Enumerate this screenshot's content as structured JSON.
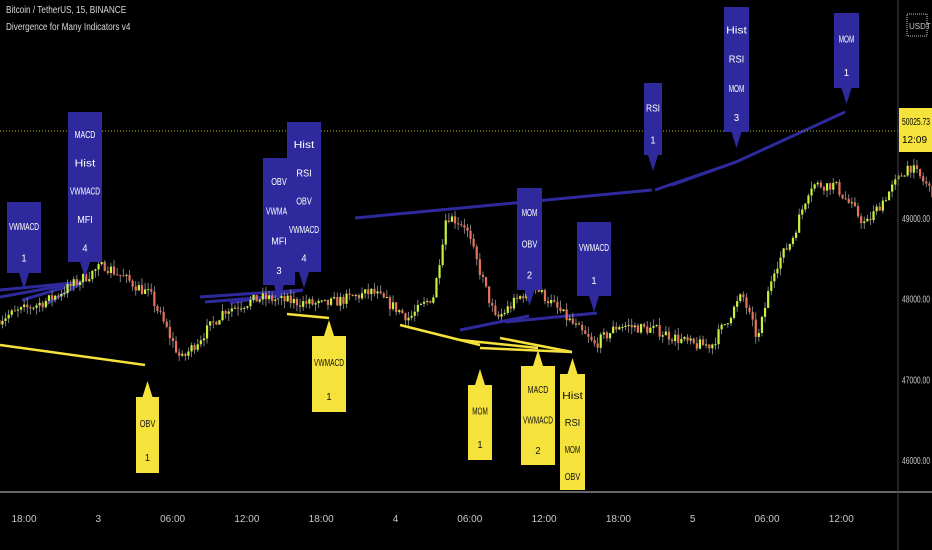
{
  "header": {
    "symbol_line": "Bitcoin / TetherUS, 15, BINANCE",
    "indicator_line": "Divergence for Many Indicators v4",
    "currency_button": "USDT"
  },
  "colors": {
    "background": "#000000",
    "bull_candle": "#c6f23a",
    "bear_candle": "#e8735a",
    "bearish_divergence": "#2e2a9e",
    "bullish_divergence": "#f5e33b",
    "price_line": "#c8b400"
  },
  "chart_data": {
    "type": "candlestick",
    "title": "Bitcoin / TetherUS, 15, BINANCE",
    "ylim": [
      45800,
      51000
    ],
    "y_ticks": [
      "49000.00",
      "48000.00",
      "47000.00",
      "46000.00"
    ],
    "x_ticks": [
      "18:00",
      "3",
      "06:00",
      "12:00",
      "18:00",
      "4",
      "06:00",
      "12:00",
      "18:00",
      "5",
      "06:00",
      "12:00"
    ],
    "last_price": {
      "value": "50025.73",
      "countdown": "12:09"
    },
    "price_path": [
      [
        "2 15:45",
        47736
      ],
      [
        "2 20:00",
        47984
      ],
      [
        "3 00:30",
        48418
      ],
      [
        "3 04:15",
        48046
      ],
      [
        "3 06:45",
        47240
      ],
      [
        "3 10:15",
        47860
      ],
      [
        "3 13:15",
        48009
      ],
      [
        "3 18:15",
        47922
      ],
      [
        "3 22:15",
        48083
      ],
      [
        "4 01:15",
        47761
      ],
      [
        "4 03:15",
        48046
      ],
      [
        "4 04:15",
        49037
      ],
      [
        "4 05:45",
        48913
      ],
      [
        "4 08:15",
        47736
      ],
      [
        "4 11:15",
        48170
      ],
      [
        "4 16:15",
        47426
      ],
      [
        "4 18:15",
        47674
      ],
      [
        "4 21:15",
        47612
      ],
      [
        "5 00:15",
        47426
      ],
      [
        "5 01:45",
        47426
      ],
      [
        "5 04:15",
        48046
      ],
      [
        "5 05:30",
        47488
      ],
      [
        "5 06:45",
        48356
      ],
      [
        "5 08:15",
        48728
      ],
      [
        "5 09:45",
        49409
      ],
      [
        "5 11:45",
        49409
      ],
      [
        "5 14:15",
        48913
      ],
      [
        "5 16:15",
        49347
      ],
      [
        "5 17:45",
        49657
      ],
      [
        "5 20:15",
        49223
      ],
      [
        "6 00:15",
        49285
      ],
      [
        "6 03:15",
        49657
      ],
      [
        "6 04:45",
        50375
      ],
      [
        "6 07:15",
        49966
      ],
      [
        "6 09:45",
        50026
      ]
    ],
    "bearish_labels": [
      {
        "text": [
          "VWMACD",
          "1"
        ]
      },
      {
        "text": [
          "MACD",
          "Hist",
          "VWMACD",
          "MFI",
          "4"
        ]
      },
      {
        "text": [
          "OBV",
          "VWMAC",
          "MFI",
          "3"
        ]
      },
      {
        "text": [
          "Hist",
          "RSI",
          "OBV",
          "VWMACD",
          "4"
        ]
      },
      {
        "text": [
          "MOM",
          "OBV",
          "2"
        ]
      },
      {
        "text": [
          "VWMACD",
          "1"
        ]
      },
      {
        "text": [
          "RSI",
          "1"
        ]
      },
      {
        "text": [
          "Hist",
          "RSI",
          "MOM",
          "3"
        ]
      },
      {
        "text": [
          "MOM",
          "1"
        ]
      }
    ],
    "bullish_labels": [
      {
        "text": [
          "OBV",
          "1"
        ]
      },
      {
        "text": [
          "VWMACD",
          "1"
        ]
      },
      {
        "text": [
          "MOM",
          "1"
        ]
      },
      {
        "text": [
          "MACD",
          "VWMACD",
          "2"
        ]
      },
      {
        "text": [
          "Hist",
          "RSI",
          "MOM",
          "OBV"
        ]
      }
    ]
  }
}
